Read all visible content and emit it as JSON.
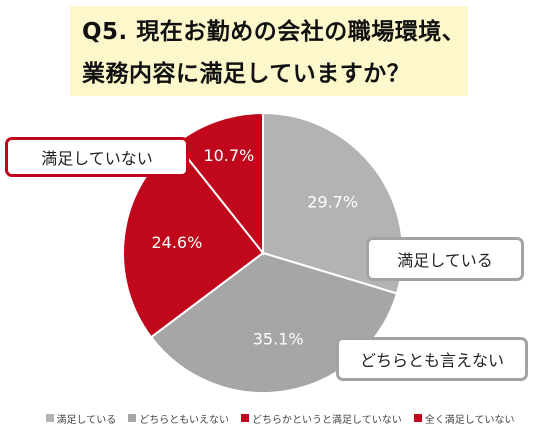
{
  "title": {
    "line1": "Q5.  現在お勤めの会社の職場環境、",
    "line2": "業務内容に満足していますか？"
  },
  "callouts": {
    "not_satisfied": "満足していない",
    "satisfied": "満足している",
    "neutral": "どちらとも言えない"
  },
  "chart_data": {
    "type": "pie",
    "title": "Q5.  現在お勤めの会社の職場環境、業務内容に満足していますか？",
    "start_angle": "12 o'clock",
    "direction": "clockwise",
    "legend_position": "bottom",
    "slices": [
      {
        "label": "満足している",
        "value": 29.7,
        "value_label": "29.7%",
        "color": "#b3b3b3"
      },
      {
        "label": "どちらともいえない",
        "value": 35.1,
        "value_label": "35.1%",
        "color": "#a6a6a6"
      },
      {
        "label": "どちらかというと満足していない",
        "value": 24.6,
        "value_label": "24.6%",
        "color": "#c0071c"
      },
      {
        "label": "全く満足していない",
        "value": 10.7,
        "value_label": "10.7%",
        "color": "#c0071c"
      }
    ]
  }
}
